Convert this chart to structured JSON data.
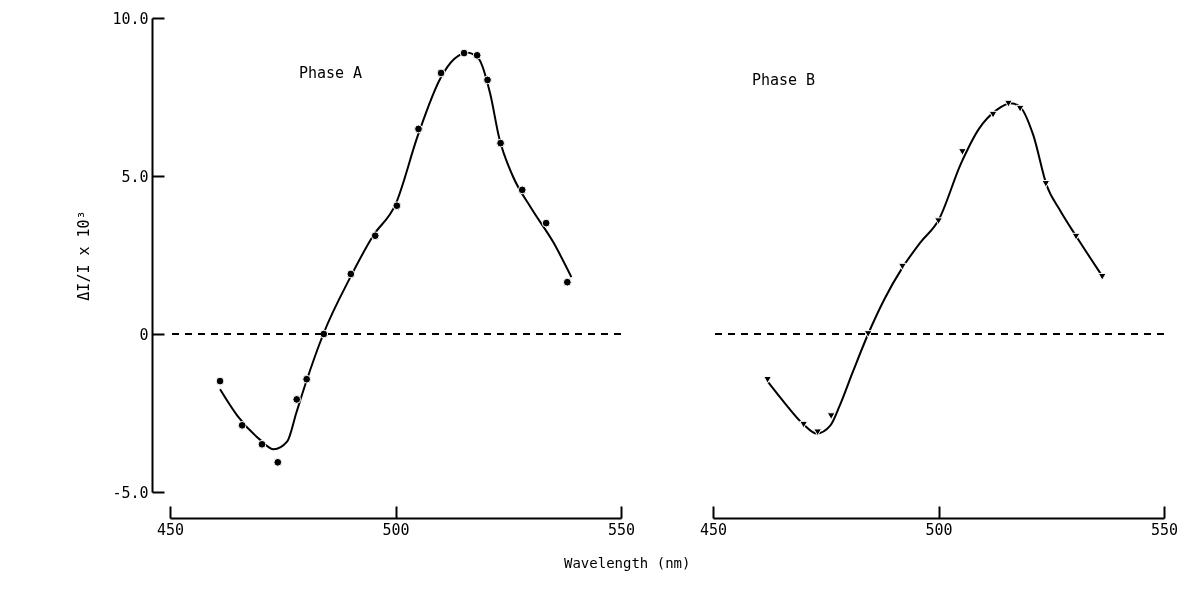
{
  "chart_data": [
    {
      "type": "scatter",
      "title": "Phase A",
      "xlabel": "Wavelength (nm)",
      "ylabel": "ΔI/I x 10³",
      "marker": "circle",
      "line_style": "solid",
      "xlim": [
        450,
        550
      ],
      "xticks": [
        450,
        500,
        550
      ],
      "ylim": [
        -5,
        10
      ],
      "yticks": [
        {
          "value": -5,
          "label": "-5.0"
        },
        0,
        {
          "value": 5,
          "label": "5.0"
        },
        {
          "value": 10,
          "label": "10.0"
        }
      ],
      "ref_lines": [
        {
          "axis": "y",
          "value": 0,
          "label": null,
          "line_style": "dashed",
          "color": "#000000"
        }
      ],
      "series": [
        {
          "color": "#000000",
          "x": [
            461.1,
            466.0,
            470.4,
            473.9,
            478.1,
            480.3,
            484.1,
            490.1,
            495.5,
            500.3,
            505.1,
            510.1,
            515.2,
            518.1,
            520.4,
            523.3,
            528.1,
            533.4,
            538.1
          ],
          "values": [
            -1.49,
            -2.89,
            -3.49,
            -4.06,
            -2.07,
            -1.43,
            0.0,
            1.9,
            3.11,
            4.06,
            6.49,
            8.26,
            8.89,
            8.82,
            8.04,
            6.04,
            4.56,
            3.51,
            1.64
          ]
        },
        {
          "type": "line",
          "marker": "none",
          "color": "#000000",
          "x": [
            461.1,
            465,
            470,
            473,
            476,
            478,
            480,
            484,
            490,
            495,
            500,
            505,
            510,
            513,
            516,
            518.5,
            521,
            523,
            526,
            530,
            535,
            539
          ],
          "values": [
            -1.75,
            -2.6,
            -3.35,
            -3.65,
            -3.4,
            -2.5,
            -1.6,
            0,
            1.8,
            3.1,
            4.1,
            6.3,
            8.1,
            8.7,
            8.9,
            8.7,
            7.6,
            6.2,
            5.0,
            4.0,
            2.9,
            1.8
          ]
        }
      ]
    },
    {
      "type": "scatter",
      "title": "Phase B",
      "marker": "triangle",
      "line_style": "solid",
      "tick_labels": "x",
      "xlim": [
        450,
        550
      ],
      "xticks": [
        450,
        500,
        550
      ],
      "ylim": [
        -5,
        10
      ],
      "ref_lines": [
        {
          "axis": "y",
          "value": 0,
          "label": null,
          "line_style": "dashed",
          "color": "#000000"
        }
      ],
      "series": [
        {
          "color": "#000000",
          "x": [
            462.1,
            470.1,
            473.2,
            476.2,
            484.4,
            492.0,
            500.0,
            505.3,
            512.1,
            515.5,
            518.1,
            523.8,
            530.5,
            536.3
          ],
          "values": [
            -1.45,
            -2.87,
            -3.11,
            -2.6,
            0.0,
            2.13,
            3.57,
            5.76,
            6.94,
            7.29,
            7.13,
            4.75,
            3.08,
            1.81
          ]
        },
        {
          "type": "line",
          "marker": "none",
          "color": "#000000",
          "x": [
            462.1,
            466,
            470,
            473,
            476,
            478,
            481,
            484.4,
            488,
            492,
            496,
            500,
            505,
            509,
            513,
            516,
            518,
            521,
            524,
            527,
            530.5,
            536
          ],
          "values": [
            -1.5,
            -2.2,
            -2.85,
            -3.15,
            -2.9,
            -2.3,
            -1.2,
            0,
            1.1,
            2.1,
            2.9,
            3.6,
            5.4,
            6.5,
            7.1,
            7.3,
            7.2,
            6.3,
            4.7,
            3.9,
            3.1,
            1.9
          ]
        }
      ]
    }
  ]
}
